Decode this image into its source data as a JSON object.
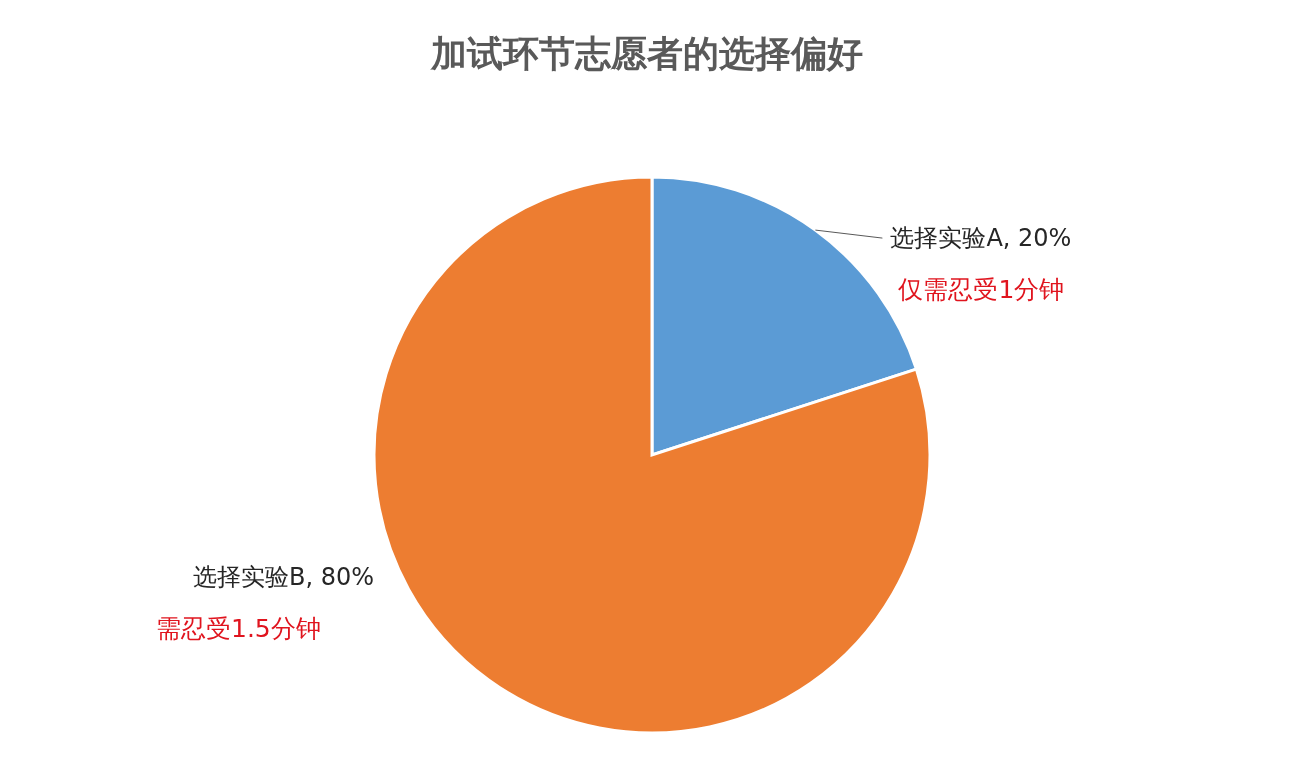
{
  "chart_data": {
    "type": "pie",
    "title": "加试环节志愿者的选择偏好",
    "categories": [
      "选择实验A",
      "选择实验B"
    ],
    "values": [
      20,
      80
    ],
    "value_labels": [
      "20%",
      "80%"
    ],
    "colors": [
      "#5b9bd5",
      "#ed7d31"
    ],
    "annotations": [
      "仅需忍受1分钟",
      "需忍受1.5分钟"
    ],
    "legend": false
  }
}
